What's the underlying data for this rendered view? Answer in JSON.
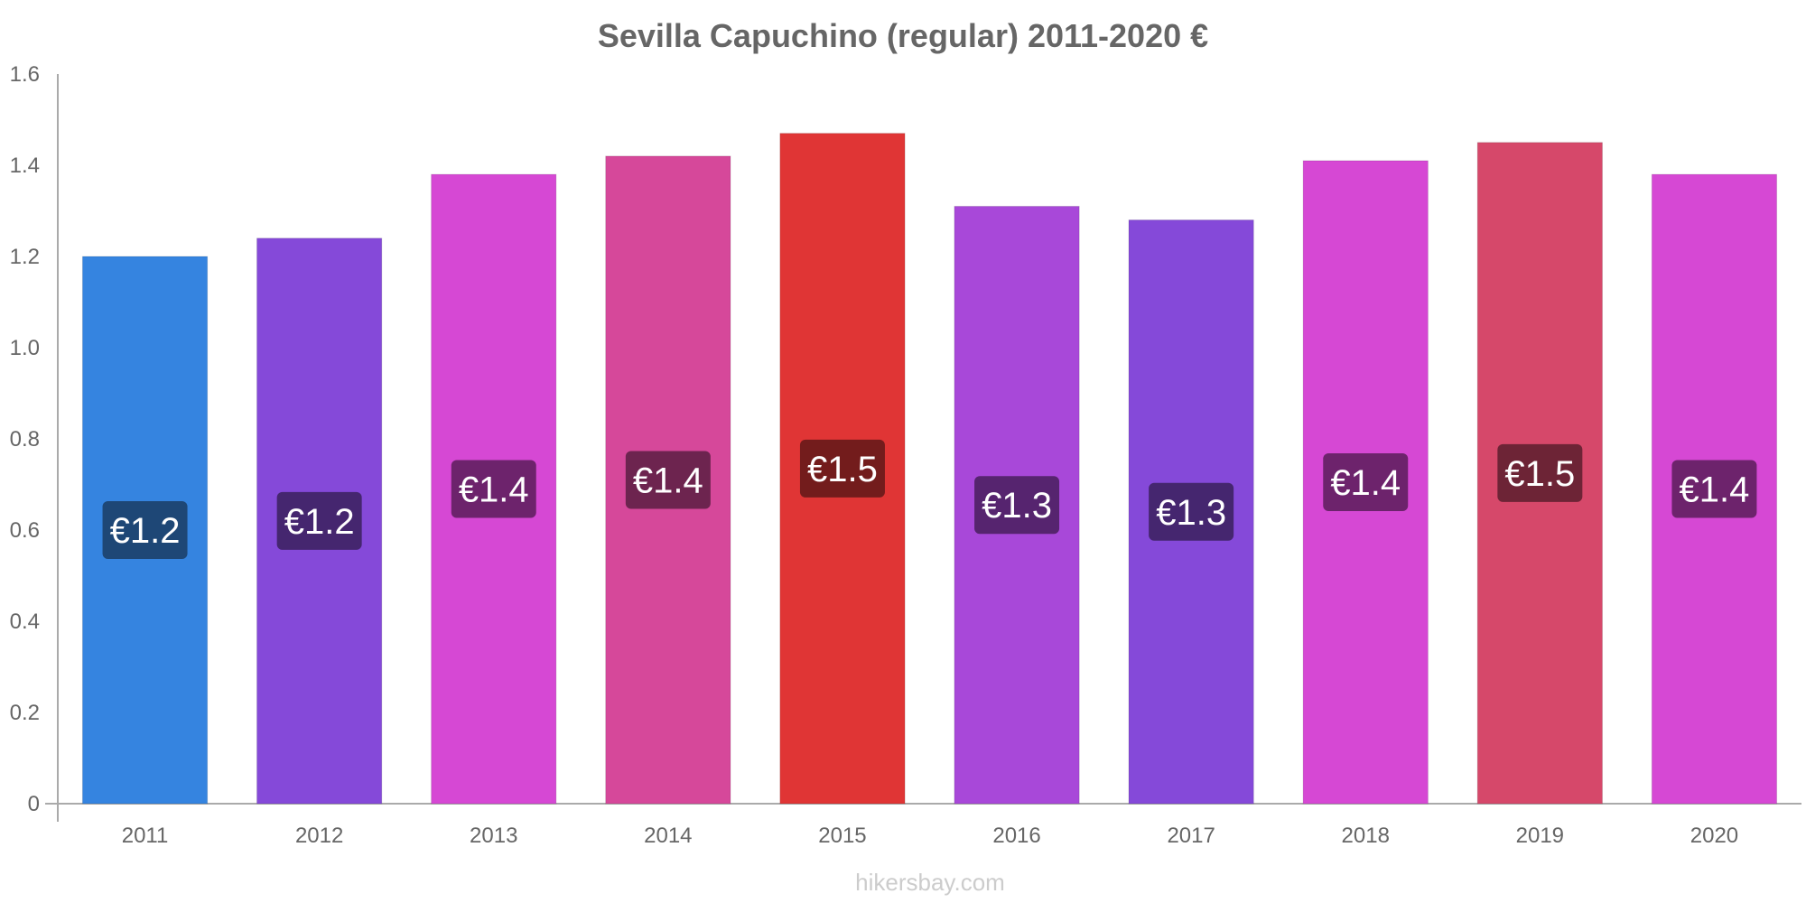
{
  "chart_data": {
    "type": "bar",
    "title": "Sevilla Capuchino (regular) 2011-2020 €",
    "categories": [
      "2011",
      "2012",
      "2013",
      "2014",
      "2015",
      "2016",
      "2017",
      "2018",
      "2019",
      "2020"
    ],
    "values": [
      1.2,
      1.24,
      1.38,
      1.42,
      1.47,
      1.31,
      1.28,
      1.41,
      1.45,
      1.38
    ],
    "value_labels": [
      "€1.2",
      "€1.2",
      "€1.4",
      "€1.4",
      "€1.5",
      "€1.3",
      "€1.3",
      "€1.4",
      "€1.5",
      "€1.4"
    ],
    "bar_colors": [
      "#3584e0",
      "#8549d9",
      "#d648d4",
      "#d6489a",
      "#e03535",
      "#a848d9",
      "#8549d9",
      "#d648d4",
      "#d6486a",
      "#d648d4"
    ],
    "label_bg_colors": [
      "#1e4776",
      "#45266f",
      "#6d236c",
      "#6d244f",
      "#731c1c",
      "#56246f",
      "#45266f",
      "#6d236c",
      "#6d2436",
      "#6d236c"
    ],
    "ylim": [
      0,
      1.6
    ],
    "yticks": [
      "0",
      "0.2",
      "0.4",
      "0.6",
      "0.8",
      "1.0",
      "1.2",
      "1.4",
      "1.6"
    ],
    "ytick_values": [
      0,
      0.2,
      0.4,
      0.6,
      0.8,
      1.0,
      1.2,
      1.4,
      1.6
    ],
    "xlabel": "",
    "ylabel": "",
    "grid": false,
    "legend": "none"
  },
  "watermark": "hikersbay.com"
}
